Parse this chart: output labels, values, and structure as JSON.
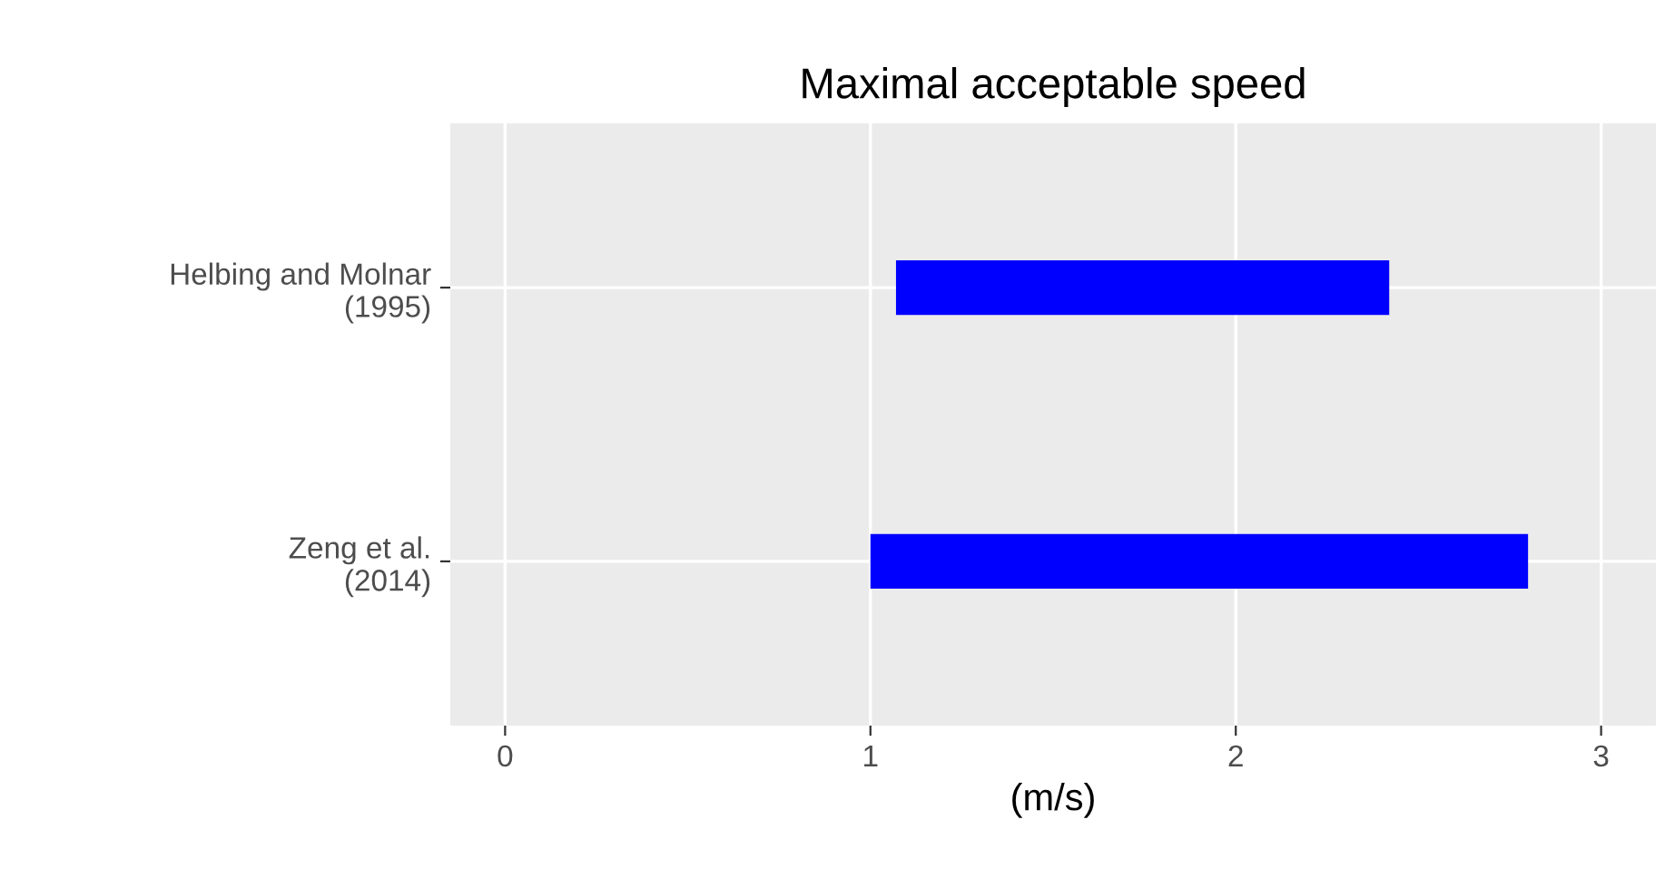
{
  "chart_data": {
    "type": "bar",
    "orientation": "horizontal",
    "title": "Maximal acceptable speed",
    "xlabel": "(m/s)",
    "categories": [
      "Helbing and Molnar\n(1995)",
      "Zeng et al.\n(2014)"
    ],
    "base": [
      1.07,
      1.0
    ],
    "values": [
      1.35,
      1.8
    ],
    "color": "#0000ff",
    "xlim": [
      -0.15,
      3.15
    ],
    "xticks": [
      0,
      1,
      2,
      3
    ],
    "grid": true,
    "legend": false
  }
}
